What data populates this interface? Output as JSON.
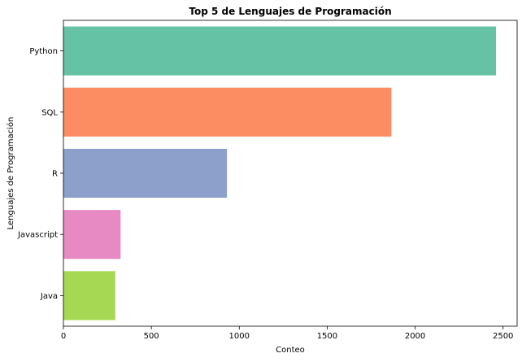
{
  "chart_data": {
    "type": "bar",
    "orientation": "horizontal",
    "title": "Top 5 de Lenguajes de Programación",
    "xlabel": "Conteo",
    "ylabel": "Lenguajes de Programación",
    "categories": [
      "Python",
      "SQL",
      "R",
      "Javascript",
      "Java"
    ],
    "values": [
      2460,
      1865,
      930,
      325,
      295
    ],
    "colors": [
      "#66c2a5",
      "#fc8d62",
      "#8da0cb",
      "#e78ac3",
      "#a6d854"
    ],
    "xlim": [
      0,
      2580
    ],
    "xticks": [
      0,
      500,
      1000,
      1500,
      2000,
      2500
    ],
    "xtick_labels": [
      "0",
      "500",
      "1000",
      "1500",
      "2000",
      "2500"
    ],
    "grid": false,
    "legend": "none"
  }
}
